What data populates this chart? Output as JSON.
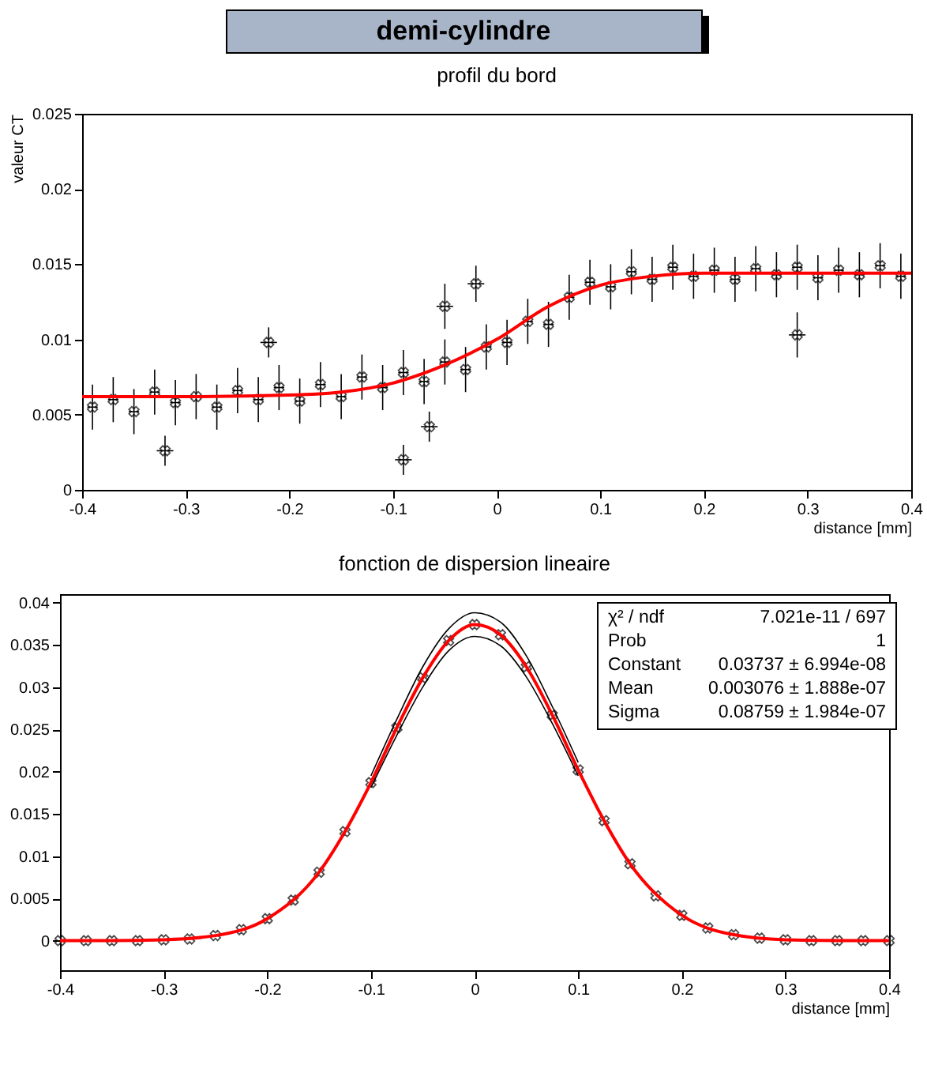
{
  "chart_data": [
    {
      "type": "scatter",
      "title": "demi-cylindre",
      "subtitle": "profil du bord",
      "xlabel": "distance [mm]",
      "ylabel": "valeur CT",
      "xlim": [
        -0.4,
        0.4
      ],
      "xticks": [
        -0.4,
        -0.3,
        -0.2,
        -0.1,
        0,
        0.1,
        0.2,
        0.3,
        0.4
      ],
      "ylim": [
        0,
        0.025
      ],
      "yticks": [
        0,
        0.005,
        0.01,
        0.015,
        0.02,
        0.025
      ],
      "series": [
        {
          "color": "#000000",
          "marker": "cross",
          "x": [
            -0.39,
            -0.37,
            -0.35,
            -0.33,
            -0.31,
            -0.29,
            -0.27,
            -0.25,
            -0.23,
            -0.21,
            -0.19,
            -0.17,
            -0.15,
            -0.13,
            -0.11,
            -0.09,
            -0.07,
            -0.05,
            -0.03,
            -0.01,
            0.01,
            0.03,
            0.05,
            0.07,
            0.09,
            0.11,
            0.13,
            0.15,
            0.17,
            0.19,
            0.21,
            0.23,
            0.25,
            0.27,
            0.29,
            0.31,
            0.33,
            0.35,
            0.37,
            0.39,
            -0.09,
            -0.065,
            0.29,
            -0.05,
            -0.02,
            -0.22,
            -0.32
          ],
          "values": [
            0.0055,
            0.006,
            0.0052,
            0.0065,
            0.0058,
            0.0062,
            0.0055,
            0.0066,
            0.006,
            0.0068,
            0.0059,
            0.007,
            0.0062,
            0.0075,
            0.0068,
            0.0078,
            0.0072,
            0.0085,
            0.008,
            0.0095,
            0.0098,
            0.0112,
            0.011,
            0.0128,
            0.0138,
            0.0135,
            0.0145,
            0.014,
            0.0148,
            0.0142,
            0.0146,
            0.014,
            0.0147,
            0.0143,
            0.0148,
            0.0141,
            0.0146,
            0.0143,
            0.0149,
            0.0142,
            0.002,
            0.0042,
            0.0103,
            0.0122,
            0.0137,
            0.0098,
            0.0026
          ],
          "errors": [
            0.0015,
            0.0015,
            0.0015,
            0.0015,
            0.0015,
            0.0015,
            0.0015,
            0.0015,
            0.0015,
            0.0015,
            0.0015,
            0.0015,
            0.0015,
            0.0015,
            0.0015,
            0.0015,
            0.0015,
            0.0015,
            0.0015,
            0.0015,
            0.0015,
            0.0015,
            0.0015,
            0.0015,
            0.0015,
            0.0015,
            0.0015,
            0.0015,
            0.0015,
            0.0015,
            0.0015,
            0.0015,
            0.0015,
            0.0015,
            0.0015,
            0.0015,
            0.0015,
            0.0015,
            0.0015,
            0.0015,
            0.001,
            0.001,
            0.0015,
            0.0015,
            0.0012,
            0.001,
            0.001
          ],
          "xerrors": [
            0.005,
            0.005,
            0.005,
            0.005,
            0.005,
            0.005,
            0.005,
            0.005,
            0.005,
            0.005,
            0.005,
            0.005,
            0.005,
            0.005,
            0.005,
            0.005,
            0.005,
            0.005,
            0.005,
            0.005,
            0.005,
            0.005,
            0.005,
            0.005,
            0.005,
            0.005,
            0.005,
            0.005,
            0.005,
            0.005,
            0.005,
            0.005,
            0.005,
            0.005,
            0.005,
            0.005,
            0.005,
            0.005,
            0.005,
            0.005,
            0.008,
            0.008,
            0.008,
            0.008,
            0.008,
            0.008,
            0.008
          ]
        },
        {
          "type": "line",
          "color": "#ff0000",
          "x": [
            -0.4,
            -0.3,
            -0.2,
            -0.15,
            -0.1,
            -0.05,
            0,
            0.05,
            0.1,
            0.15,
            0.2,
            0.3,
            0.4
          ],
          "values": [
            0.0062,
            0.0062,
            0.0063,
            0.0065,
            0.0071,
            0.0083,
            0.01,
            0.0122,
            0.0136,
            0.0142,
            0.0144,
            0.0144,
            0.0144
          ]
        }
      ]
    },
    {
      "type": "scatter",
      "title": "fonction de dispersion lineaire",
      "xlabel": "distance [mm]",
      "xlim": [
        -0.4,
        0.4
      ],
      "xticks": [
        -0.4,
        -0.3,
        -0.2,
        -0.1,
        0,
        0.1,
        0.2,
        0.3,
        0.4
      ],
      "ylim": [
        -0.0035,
        0.041
      ],
      "yticks": [
        0,
        0.005,
        0.01,
        0.015,
        0.02,
        0.025,
        0.03,
        0.035,
        0.04
      ],
      "annotations": [
        "χ² / ndf  7.021e-11 / 697",
        "Prob  1",
        "Constant  0.03737 ± 6.994e-08",
        "Mean  0.003076 ± 1.888e-07",
        "Sigma  0.08759 ± 1.984e-07"
      ],
      "series": [
        {
          "color": "#000000",
          "marker": "cross",
          "x": [
            -0.4,
            -0.375,
            -0.35,
            -0.325,
            -0.3,
            -0.275,
            -0.25,
            -0.225,
            -0.2,
            -0.175,
            -0.15,
            -0.125,
            -0.1,
            -0.075,
            -0.05,
            -0.025,
            0,
            0.025,
            0.05,
            0.075,
            0.1,
            0.125,
            0.15,
            0.175,
            0.2,
            0.225,
            0.25,
            0.275,
            0.3,
            0.325,
            0.35,
            0.375,
            0.4
          ],
          "values": [
            0,
            0,
            0,
            0,
            0.0001,
            0.0002,
            0.0006,
            0.0013,
            0.0026,
            0.0048,
            0.0081,
            0.0129,
            0.0187,
            0.0252,
            0.0311,
            0.0355,
            0.0374,
            0.0362,
            0.0324,
            0.0267,
            0.0202,
            0.0142,
            0.0091,
            0.0053,
            0.003,
            0.0015,
            0.0007,
            0.0003,
            0.0001,
            0,
            0,
            0,
            0
          ]
        },
        {
          "type": "line",
          "color": "#ff0000",
          "x": [
            -0.4,
            -0.35,
            -0.3,
            -0.25,
            -0.2,
            -0.15,
            -0.125,
            -0.1,
            -0.075,
            -0.05,
            -0.025,
            0,
            0.025,
            0.05,
            0.075,
            0.1,
            0.125,
            0.15,
            0.2,
            0.25,
            0.3,
            0.35,
            0.4
          ],
          "values": [
            0,
            0,
            0.0001,
            0.0006,
            0.0026,
            0.0081,
            0.0129,
            0.0187,
            0.0252,
            0.0311,
            0.0355,
            0.0374,
            0.0362,
            0.0324,
            0.0267,
            0.0202,
            0.0142,
            0.0091,
            0.003,
            0.0007,
            0.0001,
            0,
            0
          ]
        },
        {
          "type": "line",
          "color": "#000000",
          "x": [
            -0.1,
            -0.075,
            -0.05,
            -0.025,
            0,
            0.025,
            0.05,
            0.075,
            0.1
          ],
          "values": [
            0.0181,
            0.0243,
            0.03,
            0.0343,
            0.036,
            0.0349,
            0.0312,
            0.0257,
            0.0195
          ]
        },
        {
          "type": "line",
          "color": "#000000",
          "x": [
            -0.1,
            -0.075,
            -0.05,
            -0.025,
            0,
            0.025,
            0.05,
            0.075,
            0.1
          ],
          "values": [
            0.0195,
            0.0262,
            0.0324,
            0.0369,
            0.0388,
            0.0377,
            0.0337,
            0.0277,
            0.0211
          ]
        }
      ]
    }
  ]
}
